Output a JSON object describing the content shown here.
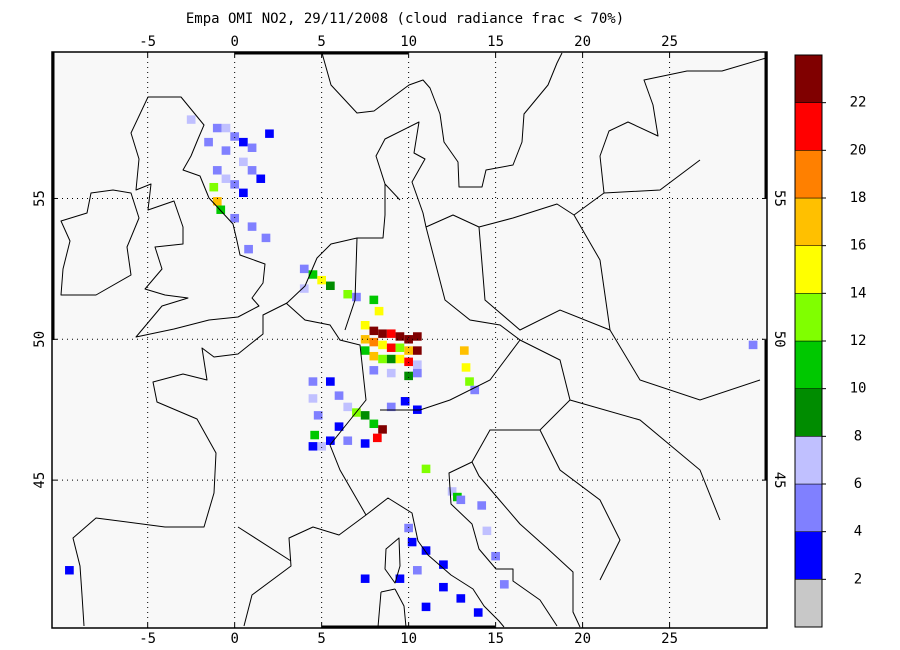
{
  "title": "Empa OMI NO2, 29/11/2008 (cloud radiance frac < 70%)",
  "map": {
    "lonlim": [
      -10.5,
      30.6
    ],
    "latlim": [
      39.75,
      60.2
    ],
    "lon_ticks": [
      -5,
      0,
      5,
      10,
      15,
      20,
      25
    ],
    "lat_ticks": [
      45,
      50,
      55
    ],
    "grid": true
  },
  "colorbar": {
    "clim": [
      0,
      24
    ],
    "levels": [
      2,
      4,
      6,
      8,
      10,
      12,
      14,
      16,
      18,
      20,
      22
    ],
    "colors": [
      "#c8c8c8",
      "#0000ff",
      "#8080ff",
      "#c0c0ff",
      "#008c00",
      "#00c800",
      "#80ff00",
      "#ffff00",
      "#ffc000",
      "#ff8000",
      "#ff0000",
      "#800000"
    ]
  },
  "cells": [
    {
      "lon": -1,
      "lat": 57.5,
      "value": 4
    },
    {
      "lon": -0.5,
      "lat": 57.5,
      "value": 6
    },
    {
      "lon": 0,
      "lat": 57.2,
      "value": 4
    },
    {
      "lon": 0.5,
      "lat": 57,
      "value": 2
    },
    {
      "lon": 1,
      "lat": 56.8,
      "value": 4
    },
    {
      "lon": -1.5,
      "lat": 57,
      "value": 4
    },
    {
      "lon": -0.5,
      "lat": 56.7,
      "value": 4
    },
    {
      "lon": 0.5,
      "lat": 56.3,
      "value": 6
    },
    {
      "lon": 1,
      "lat": 56,
      "value": 4
    },
    {
      "lon": -1,
      "lat": 56,
      "value": 4
    },
    {
      "lon": -0.5,
      "lat": 55.7,
      "value": 6
    },
    {
      "lon": 0,
      "lat": 55.5,
      "value": 4
    },
    {
      "lon": 0.5,
      "lat": 55.2,
      "value": 2
    },
    {
      "lon": -1.2,
      "lat": 55.4,
      "value": 12
    },
    {
      "lon": -1,
      "lat": 54.9,
      "value": 16
    },
    {
      "lon": -0.8,
      "lat": 54.6,
      "value": 10
    },
    {
      "lon": 0,
      "lat": 54.3,
      "value": 4
    },
    {
      "lon": 1,
      "lat": 54,
      "value": 4
    },
    {
      "lon": 1.8,
      "lat": 53.6,
      "value": 4
    },
    {
      "lon": -2.5,
      "lat": 57.8,
      "value": 6
    },
    {
      "lon": 2,
      "lat": 57.3,
      "value": 2
    },
    {
      "lon": 1.5,
      "lat": 55.7,
      "value": 2
    },
    {
      "lon": 0.8,
      "lat": 53.2,
      "value": 4
    },
    {
      "lon": 4,
      "lat": 52.5,
      "value": 4
    },
    {
      "lon": 4.5,
      "lat": 52.3,
      "value": 10
    },
    {
      "lon": 5,
      "lat": 52.1,
      "value": 14
    },
    {
      "lon": 5.5,
      "lat": 51.9,
      "value": 8
    },
    {
      "lon": 4,
      "lat": 51.8,
      "value": 6
    },
    {
      "lon": 6.5,
      "lat": 51.6,
      "value": 12
    },
    {
      "lon": 7,
      "lat": 51.5,
      "value": 4
    },
    {
      "lon": 7.5,
      "lat": 50.5,
      "value": 14
    },
    {
      "lon": 8,
      "lat": 50.3,
      "value": 22
    },
    {
      "lon": 8.5,
      "lat": 50.2,
      "value": 23
    },
    {
      "lon": 9,
      "lat": 50.2,
      "value": 20
    },
    {
      "lon": 9.5,
      "lat": 50.1,
      "value": 22
    },
    {
      "lon": 10,
      "lat": 50,
      "value": 23
    },
    {
      "lon": 10.5,
      "lat": 50.1,
      "value": 23
    },
    {
      "lon": 7.5,
      "lat": 50,
      "value": 16
    },
    {
      "lon": 8,
      "lat": 49.9,
      "value": 18
    },
    {
      "lon": 8.5,
      "lat": 49.8,
      "value": 14
    },
    {
      "lon": 9,
      "lat": 49.7,
      "value": 20
    },
    {
      "lon": 9.5,
      "lat": 49.7,
      "value": 12
    },
    {
      "lon": 10,
      "lat": 49.6,
      "value": 16
    },
    {
      "lon": 10.5,
      "lat": 49.6,
      "value": 22
    },
    {
      "lon": 7.5,
      "lat": 49.6,
      "value": 10
    },
    {
      "lon": 8,
      "lat": 49.4,
      "value": 16
    },
    {
      "lon": 8.5,
      "lat": 49.3,
      "value": 12
    },
    {
      "lon": 9,
      "lat": 49.3,
      "value": 8
    },
    {
      "lon": 9.5,
      "lat": 49.3,
      "value": 14
    },
    {
      "lon": 10,
      "lat": 49.2,
      "value": 20
    },
    {
      "lon": 10.5,
      "lat": 49.1,
      "value": 6
    },
    {
      "lon": 8,
      "lat": 48.9,
      "value": 4
    },
    {
      "lon": 9,
      "lat": 48.8,
      "value": 6
    },
    {
      "lon": 10,
      "lat": 48.7,
      "value": 8
    },
    {
      "lon": 10.5,
      "lat": 48.8,
      "value": 4
    },
    {
      "lon": 8.3,
      "lat": 51,
      "value": 14
    },
    {
      "lon": 8,
      "lat": 51.4,
      "value": 10
    },
    {
      "lon": 13.2,
      "lat": 49.6,
      "value": 16
    },
    {
      "lon": 13.3,
      "lat": 49,
      "value": 14
    },
    {
      "lon": 13.5,
      "lat": 48.5,
      "value": 12
    },
    {
      "lon": 13.8,
      "lat": 48.2,
      "value": 4
    },
    {
      "lon": 4.5,
      "lat": 48.5,
      "value": 4
    },
    {
      "lon": 4.5,
      "lat": 47.9,
      "value": 6
    },
    {
      "lon": 4.8,
      "lat": 47.3,
      "value": 4
    },
    {
      "lon": 4.6,
      "lat": 46.6,
      "value": 10
    },
    {
      "lon": 5,
      "lat": 46.2,
      "value": 6
    },
    {
      "lon": 5.5,
      "lat": 48.5,
      "value": 2
    },
    {
      "lon": 6,
      "lat": 48,
      "value": 4
    },
    {
      "lon": 6.5,
      "lat": 47.6,
      "value": 6
    },
    {
      "lon": 7,
      "lat": 47.4,
      "value": 12
    },
    {
      "lon": 7.5,
      "lat": 47.3,
      "value": 8
    },
    {
      "lon": 8,
      "lat": 47,
      "value": 10
    },
    {
      "lon": 8.5,
      "lat": 46.8,
      "value": 22
    },
    {
      "lon": 8.2,
      "lat": 46.5,
      "value": 20
    },
    {
      "lon": 7.5,
      "lat": 46.3,
      "value": 2
    },
    {
      "lon": 6.5,
      "lat": 46.4,
      "value": 4
    },
    {
      "lon": 9,
      "lat": 47.6,
      "value": 4
    },
    {
      "lon": 9.8,
      "lat": 47.8,
      "value": 2
    },
    {
      "lon": 10.5,
      "lat": 47.5,
      "value": 2
    },
    {
      "lon": 6,
      "lat": 46.9,
      "value": 2
    },
    {
      "lon": 5.5,
      "lat": 46.4,
      "value": 2
    },
    {
      "lon": 4.5,
      "lat": 46.2,
      "value": 2
    },
    {
      "lon": 11,
      "lat": 45.4,
      "value": 12
    },
    {
      "lon": 12.5,
      "lat": 44.6,
      "value": 6
    },
    {
      "lon": 12.8,
      "lat": 44.4,
      "value": 10
    },
    {
      "lon": 13,
      "lat": 44.3,
      "value": 4
    },
    {
      "lon": 10,
      "lat": 43.3,
      "value": 4
    },
    {
      "lon": 10.2,
      "lat": 42.8,
      "value": 2
    },
    {
      "lon": 11,
      "lat": 42.5,
      "value": 2
    },
    {
      "lon": 12,
      "lat": 42,
      "value": 2
    },
    {
      "lon": 12,
      "lat": 41.2,
      "value": 2
    },
    {
      "lon": 11,
      "lat": 40.5,
      "value": 2
    },
    {
      "lon": 13,
      "lat": 40.8,
      "value": 2
    },
    {
      "lon": 14,
      "lat": 40.3,
      "value": 2
    },
    {
      "lon": 10.5,
      "lat": 41.8,
      "value": 4
    },
    {
      "lon": 9.5,
      "lat": 41.5,
      "value": 2
    },
    {
      "lon": 14.5,
      "lat": 43.2,
      "value": 6
    },
    {
      "lon": 15,
      "lat": 42.3,
      "value": 4
    },
    {
      "lon": 15.5,
      "lat": 41.3,
      "value": 4
    },
    {
      "lon": 14.2,
      "lat": 44.1,
      "value": 4
    },
    {
      "lon": 7.5,
      "lat": 41.5,
      "value": 2
    },
    {
      "lon": -9.5,
      "lat": 41.8,
      "value": 2
    },
    {
      "lon": 29.8,
      "lat": 49.8,
      "value": 4
    }
  ]
}
